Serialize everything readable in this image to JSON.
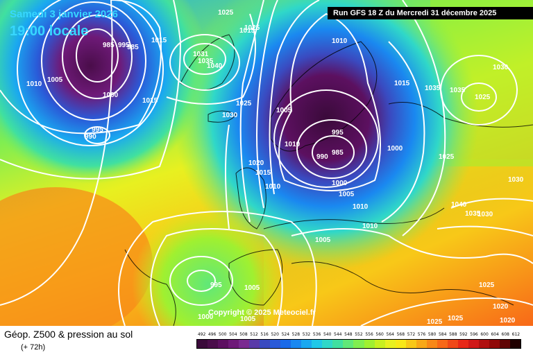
{
  "header": {
    "date_label": "Samedi 3 janvier 2026",
    "time_label": "19:00 locale",
    "run_label": "Run GFS 18 Z du Mercredi 31 décembre 2025"
  },
  "copyright": "Copyright © 2025 Meteociel.fr",
  "footer": {
    "title": "Géop. Z500 & pression au sol",
    "lead_time": "(+ 72h)"
  },
  "scale": {
    "values": [
      "492",
      "496",
      "500",
      "504",
      "508",
      "512",
      "516",
      "520",
      "524",
      "528",
      "532",
      "536",
      "540",
      "544",
      "548",
      "552",
      "556",
      "560",
      "564",
      "568",
      "572",
      "576",
      "580",
      "584",
      "588",
      "592",
      "596",
      "600",
      "604",
      "608",
      "612"
    ],
    "colors": [
      "#3a0a3a",
      "#4a0d4a",
      "#5c1060",
      "#6e1a78",
      "#7a2a90",
      "#5a3aa8",
      "#3a4ac0",
      "#2a5ad8",
      "#1a6ae8",
      "#1a88f0",
      "#1aa8f0",
      "#20c8e8",
      "#30d8c8",
      "#40e0a0",
      "#60e878",
      "#80ee50",
      "#a0f030",
      "#c8f020",
      "#e8f020",
      "#f8e818",
      "#f8c818",
      "#f8a818",
      "#f88818",
      "#f86818",
      "#f04818",
      "#e82818",
      "#d01818",
      "#b01010",
      "#900808",
      "#600404",
      "#200000"
    ]
  },
  "isobars": [
    {
      "value": "985"
    },
    {
      "value": "990"
    },
    {
      "value": "995"
    },
    {
      "value": "1000"
    },
    {
      "value": "1005"
    },
    {
      "value": "1010"
    },
    {
      "value": "1015"
    },
    {
      "value": "1020"
    },
    {
      "value": "1025"
    },
    {
      "value": "1030"
    },
    {
      "value": "1035"
    },
    {
      "value": "1040"
    }
  ],
  "map_labels": [
    "985",
    "990",
    "995",
    "1005",
    "1010",
    "1000",
    "1025",
    "1015",
    "1031",
    "1035",
    "1040",
    "1030",
    "1025",
    "1005",
    "995",
    "990",
    "985",
    "1000",
    "1010",
    "1005",
    "1010",
    "1015",
    "1020",
    "1030",
    "1035",
    "1025",
    "1000",
    "1010",
    "1005",
    "1010",
    "1040",
    "1030",
    "1035",
    "1030",
    "1025",
    "1025",
    "1020",
    "1020",
    "995",
    "1005",
    "1005",
    "1000",
    "1025",
    "1005"
  ]
}
